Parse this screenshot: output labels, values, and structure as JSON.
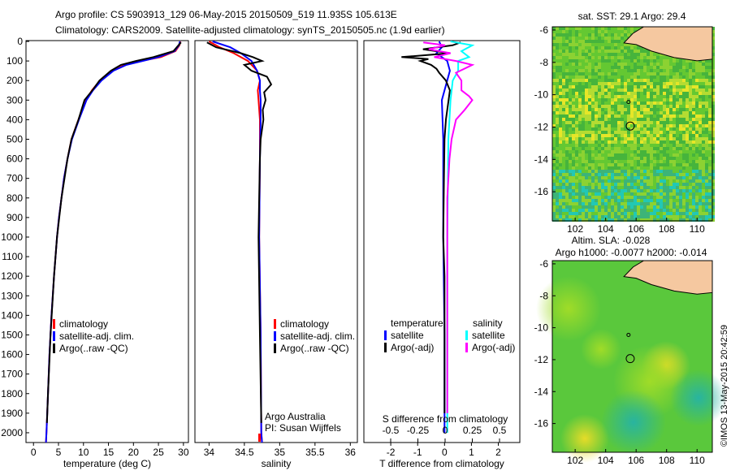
{
  "title_line1": "Argo profile: CS 5903913_129 06-May-2015 20150509_519 11.935S 105.613E",
  "title_line2": "Climatology: CARS2009. Satellite-adjusted climatology: synTS_20150505.nc (1.9d earlier)",
  "timestamp": "©IMOS 13-May-2015 20:42:59",
  "colors": {
    "climatology": "#ff0000",
    "satellite": "#0000ff",
    "argo": "#000000",
    "sal_satellite": "#00ffff",
    "sal_argo": "#ff00ff",
    "land": "#f5c8a0"
  },
  "chart_data": [
    {
      "type": "line",
      "id": "temperature",
      "xlabel": "temperature (deg C)",
      "xlim": [
        -1.5,
        31
      ],
      "ylim": [
        2050,
        0
      ],
      "xticks": [
        "0",
        "5",
        "10",
        "15",
        "20",
        "25",
        "30"
      ],
      "xtickvals": [
        0,
        5,
        10,
        15,
        20,
        25,
        30
      ],
      "yticks": [
        "0",
        "100",
        "200",
        "300",
        "400",
        "500",
        "600",
        "700",
        "800",
        "900",
        "1000",
        "1100",
        "1200",
        "1300",
        "1400",
        "1500",
        "1600",
        "1700",
        "1800",
        "1900",
        "2000"
      ],
      "legend": [
        "climatology",
        "satellite-adj. clim.",
        "Argo(..raw -QC)"
      ],
      "series": [
        {
          "name": "climatology",
          "color": "#ff0000",
          "depth": [
            0,
            20,
            50,
            80,
            100,
            120,
            150,
            200,
            250,
            300,
            400,
            500,
            600,
            700,
            800,
            900,
            1000,
            1200,
            1400,
            1600,
            1800,
            2000,
            2050
          ],
          "values": [
            29.4,
            29.2,
            28.4,
            25.5,
            21.5,
            18.3,
            15.8,
            13.3,
            11.7,
            10.5,
            9.0,
            7.6,
            6.8,
            6.1,
            5.6,
            5.1,
            4.7,
            4.1,
            3.6,
            3.2,
            2.9,
            2.6,
            2.5
          ]
        },
        {
          "name": "satellite-adj. clim.",
          "color": "#0000ff",
          "depth": [
            0,
            20,
            50,
            80,
            100,
            120,
            150,
            200,
            250,
            300,
            400,
            500,
            600,
            700,
            800,
            900,
            1000,
            1200,
            1400,
            1600,
            1800,
            2000,
            2050
          ],
          "values": [
            29.3,
            29.1,
            28.2,
            25.0,
            21.8,
            18.6,
            16.0,
            13.6,
            11.9,
            10.6,
            9.1,
            7.7,
            6.8,
            6.1,
            5.6,
            5.1,
            4.7,
            4.1,
            3.6,
            3.2,
            2.9,
            2.6,
            2.5
          ]
        },
        {
          "name": "Argo",
          "color": "#000000",
          "depth": [
            5,
            20,
            50,
            80,
            100,
            120,
            150,
            200,
            250,
            300,
            400,
            500,
            600,
            800,
            1000,
            1200,
            1500,
            1800,
            1950
          ],
          "values": [
            29.5,
            29.0,
            28.0,
            24.0,
            20.5,
            17.5,
            15.5,
            13.2,
            11.8,
            10.2,
            9.0,
            7.6,
            6.8,
            5.6,
            4.7,
            4.1,
            3.4,
            2.9,
            2.7
          ]
        }
      ]
    },
    {
      "type": "line",
      "id": "salinity",
      "xlabel": "salinity",
      "xlim": [
        33.8,
        36.1
      ],
      "ylim": [
        2050,
        0
      ],
      "xticks": [
        "34",
        "34.5",
        "35",
        "35.5",
        "36"
      ],
      "xtickvals": [
        34,
        34.5,
        35,
        35.5,
        36
      ],
      "legend": [
        "climatology",
        "satellite-adj. clim.",
        "Argo(..raw -QC)"
      ],
      "annotation": [
        "Argo Australia",
        "PI: Susan Wijffels"
      ],
      "series": [
        {
          "name": "climatology",
          "color": "#ff0000",
          "depth": [
            0,
            30,
            60,
            100,
            150,
            200,
            250,
            300,
            400,
            600,
            1000,
            1500,
            2000,
            2050
          ],
          "values": [
            34.0,
            34.15,
            34.35,
            34.55,
            34.68,
            34.72,
            34.69,
            34.7,
            34.72,
            34.72,
            34.71,
            34.73,
            34.74,
            34.75
          ]
        },
        {
          "name": "satellite-adj. clim.",
          "color": "#0000ff",
          "depth": [
            0,
            30,
            60,
            100,
            150,
            200,
            250,
            300,
            400,
            600,
            1000,
            1500,
            2000,
            2050
          ],
          "values": [
            34.05,
            34.3,
            34.45,
            34.6,
            34.68,
            34.72,
            34.72,
            34.73,
            34.73,
            34.72,
            34.71,
            34.73,
            34.74,
            34.75
          ]
        },
        {
          "name": "Argo",
          "color": "#000000",
          "depth": [
            5,
            30,
            60,
            80,
            100,
            120,
            150,
            180,
            220,
            260,
            300,
            350,
            400,
            500,
            600,
            800,
            1000,
            1500,
            1950
          ],
          "values": [
            33.97,
            34.1,
            34.45,
            34.62,
            34.75,
            34.5,
            34.6,
            34.82,
            34.88,
            34.78,
            34.8,
            34.76,
            34.77,
            34.73,
            34.72,
            34.71,
            34.7,
            34.72,
            34.74
          ]
        }
      ]
    },
    {
      "type": "line",
      "id": "difference",
      "xlabel": "T difference from climatology",
      "x2label": "S difference from climatology",
      "xlim": [
        -3,
        2.8
      ],
      "ylim": [
        2050,
        0
      ],
      "xticks": [
        "-2",
        "-1",
        "0",
        "1",
        "2"
      ],
      "xtickvals": [
        -2,
        -1,
        0,
        1,
        2
      ],
      "x2ticks": [
        "-0.5",
        "-0.25",
        "0",
        "0.25",
        "0.5"
      ],
      "x2tickvals": [
        -0.5,
        -0.25,
        0,
        0.25,
        0.5
      ],
      "legend": {
        "temperature": "temperature",
        "salinity": "salinity",
        "items": [
          "satellite",
          "Argo(-adj)",
          "satellite",
          "Argo(-adj)"
        ]
      },
      "series": [
        {
          "name": "T satellite",
          "color": "#0000ff",
          "axis": "T",
          "depth": [
            0,
            30,
            60,
            100,
            150,
            200,
            300,
            500,
            1000,
            1500,
            2000
          ],
          "values": [
            -0.2,
            -0.1,
            -0.3,
            0.1,
            0.2,
            0.1,
            -0.1,
            -0.05,
            -0.05,
            0,
            0
          ]
        },
        {
          "name": "T Argo",
          "color": "#000000",
          "axis": "T",
          "depth": [
            5,
            20,
            40,
            60,
            80,
            90,
            100,
            120,
            140,
            160,
            200,
            250,
            300,
            400,
            500,
            700,
            1000,
            1200,
            1500,
            1900
          ],
          "values": [
            0.6,
            0.3,
            -0.8,
            0.2,
            -1.6,
            -0.6,
            -0.9,
            -0.5,
            -0.3,
            -0.2,
            0.05,
            0.2,
            0.15,
            0.05,
            0,
            -0.02,
            -0.05,
            0,
            0,
            0
          ]
        },
        {
          "name": "S satellite",
          "color": "#00ffff",
          "axis": "S",
          "depth": [
            0,
            20,
            50,
            80,
            100,
            150,
            200,
            300,
            500,
            1000,
            1500,
            2000
          ],
          "values": [
            0.05,
            0.25,
            0.15,
            0.22,
            0.12,
            0.12,
            0.07,
            0.05,
            0.03,
            0.02,
            0.02,
            0.02
          ]
        },
        {
          "name": "S Argo",
          "color": "#ff00ff",
          "axis": "S",
          "depth": [
            5,
            20,
            40,
            60,
            80,
            100,
            120,
            160,
            200,
            250,
            280,
            300,
            350,
            400,
            500,
            600,
            800,
            1000,
            1500,
            1900
          ],
          "values": [
            -0.2,
            0,
            -0.15,
            0.05,
            -0.1,
            0.1,
            0.25,
            0.1,
            0.15,
            0.15,
            0.22,
            0.25,
            0.18,
            0.1,
            0.06,
            0.04,
            0.02,
            0.02,
            0.02,
            0.02
          ]
        }
      ]
    },
    {
      "type": "heatmap",
      "id": "sst_map",
      "title": "sat. SST: 29.1  Argo: 29.4",
      "xticks": [
        "102",
        "104",
        "106",
        "108",
        "110"
      ],
      "xtickvals": [
        102,
        104,
        106,
        108,
        110
      ],
      "yticks": [
        "-6",
        "-8",
        "-10",
        "-12",
        "-14",
        "-16"
      ],
      "ytickvals": [
        -6,
        -8,
        -10,
        -12,
        -14,
        -16
      ],
      "xlim": [
        100.5,
        111
      ],
      "ylim": [
        -17.8,
        -5.8
      ],
      "argo_position": [
        105.613,
        -11.935
      ]
    },
    {
      "type": "heatmap",
      "id": "sla_map",
      "title_line1": "Altim. SLA: -0.028",
      "title_line2": "Argo h1000: -0.0077 h2000: -0.014",
      "xticks": [
        "102",
        "104",
        "106",
        "108",
        "110"
      ],
      "xtickvals": [
        102,
        104,
        106,
        108,
        110
      ],
      "yticks": [
        "-6",
        "-8",
        "-10",
        "-12",
        "-14",
        "-16"
      ],
      "ytickvals": [
        -6,
        -8,
        -10,
        -12,
        -14,
        -16
      ],
      "xlim": [
        100.5,
        111
      ],
      "ylim": [
        -17.8,
        -5.8
      ],
      "argo_position": [
        105.613,
        -11.935
      ]
    }
  ]
}
